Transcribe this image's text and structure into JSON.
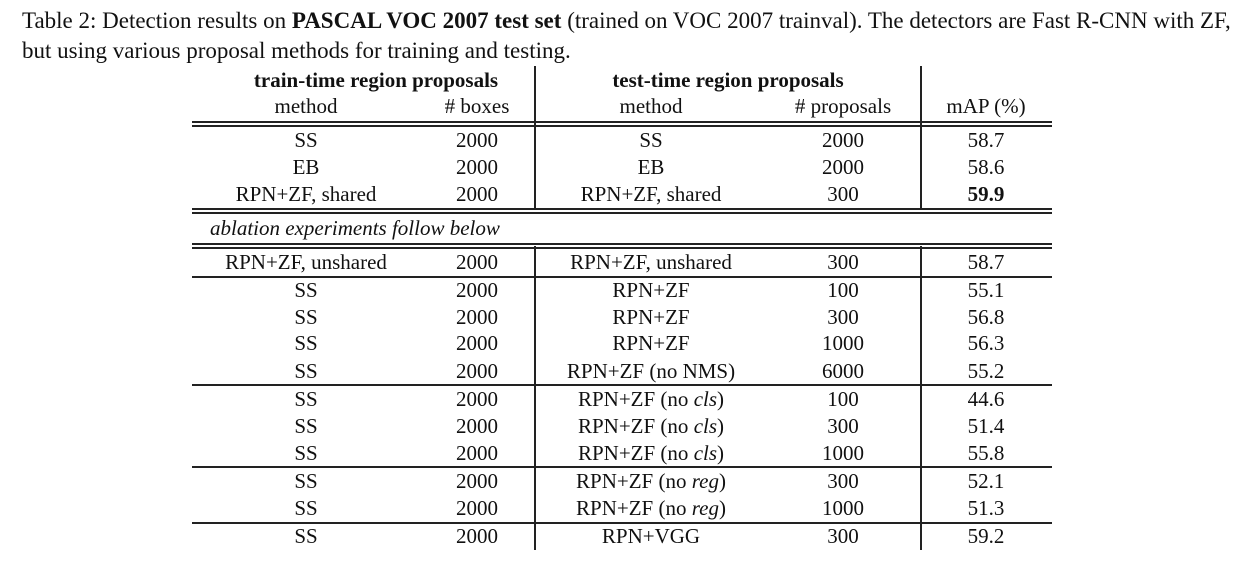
{
  "caption": {
    "prefix": "Table 2: Detection results on ",
    "bold": "PASCAL VOC 2007 test set",
    "suffix": " (trained on VOC 2007 trainval). The detectors are Fast R-CNN with ZF, but using various proposal methods for training and testing."
  },
  "header": {
    "group_train": "train-time region proposals",
    "group_test": "test-time region proposals",
    "col_method": "method",
    "col_boxes": "# boxes",
    "col_test_method": "method",
    "col_proposals": "# proposals",
    "col_map": "mAP (%)"
  },
  "section_note": "ablation experiments follow below",
  "rows": [
    {
      "train": "SS",
      "boxes": "2000",
      "test": "SS",
      "test_em": "",
      "test_tail": "",
      "proposals": "2000",
      "map": "58.7",
      "map_bold": false
    },
    {
      "train": "EB",
      "boxes": "2000",
      "test": "EB",
      "test_em": "",
      "test_tail": "",
      "proposals": "2000",
      "map": "58.6",
      "map_bold": false
    },
    {
      "train": "RPN+ZF, shared",
      "boxes": "2000",
      "test": "RPN+ZF, shared",
      "test_em": "",
      "test_tail": "",
      "proposals": "300",
      "map": "59.9",
      "map_bold": true
    },
    {
      "train": "RPN+ZF, unshared",
      "boxes": "2000",
      "test": "RPN+ZF, unshared",
      "test_em": "",
      "test_tail": "",
      "proposals": "300",
      "map": "58.7",
      "map_bold": false
    },
    {
      "train": "SS",
      "boxes": "2000",
      "test": "RPN+ZF",
      "test_em": "",
      "test_tail": "",
      "proposals": "100",
      "map": "55.1",
      "map_bold": false
    },
    {
      "train": "SS",
      "boxes": "2000",
      "test": "RPN+ZF",
      "test_em": "",
      "test_tail": "",
      "proposals": "300",
      "map": "56.8",
      "map_bold": false
    },
    {
      "train": "SS",
      "boxes": "2000",
      "test": "RPN+ZF",
      "test_em": "",
      "test_tail": "",
      "proposals": "1000",
      "map": "56.3",
      "map_bold": false
    },
    {
      "train": "SS",
      "boxes": "2000",
      "test": "RPN+ZF (no NMS)",
      "test_em": "",
      "test_tail": "",
      "proposals": "6000",
      "map": "55.2",
      "map_bold": false
    },
    {
      "train": "SS",
      "boxes": "2000",
      "test": "RPN+ZF (no ",
      "test_em": "cls",
      "test_tail": ")",
      "proposals": "100",
      "map": "44.6",
      "map_bold": false
    },
    {
      "train": "SS",
      "boxes": "2000",
      "test": "RPN+ZF (no ",
      "test_em": "cls",
      "test_tail": ")",
      "proposals": "300",
      "map": "51.4",
      "map_bold": false
    },
    {
      "train": "SS",
      "boxes": "2000",
      "test": "RPN+ZF (no ",
      "test_em": "cls",
      "test_tail": ")",
      "proposals": "1000",
      "map": "55.8",
      "map_bold": false
    },
    {
      "train": "SS",
      "boxes": "2000",
      "test": "RPN+ZF (no ",
      "test_em": "reg",
      "test_tail": ")",
      "proposals": "300",
      "map": "52.1",
      "map_bold": false
    },
    {
      "train": "SS",
      "boxes": "2000",
      "test": "RPN+ZF (no ",
      "test_em": "reg",
      "test_tail": ")",
      "proposals": "1000",
      "map": "51.3",
      "map_bold": false
    },
    {
      "train": "SS",
      "boxes": "2000",
      "test": "RPN+VGG",
      "test_em": "",
      "test_tail": "",
      "proposals": "300",
      "map": "59.2",
      "map_bold": false
    }
  ]
}
